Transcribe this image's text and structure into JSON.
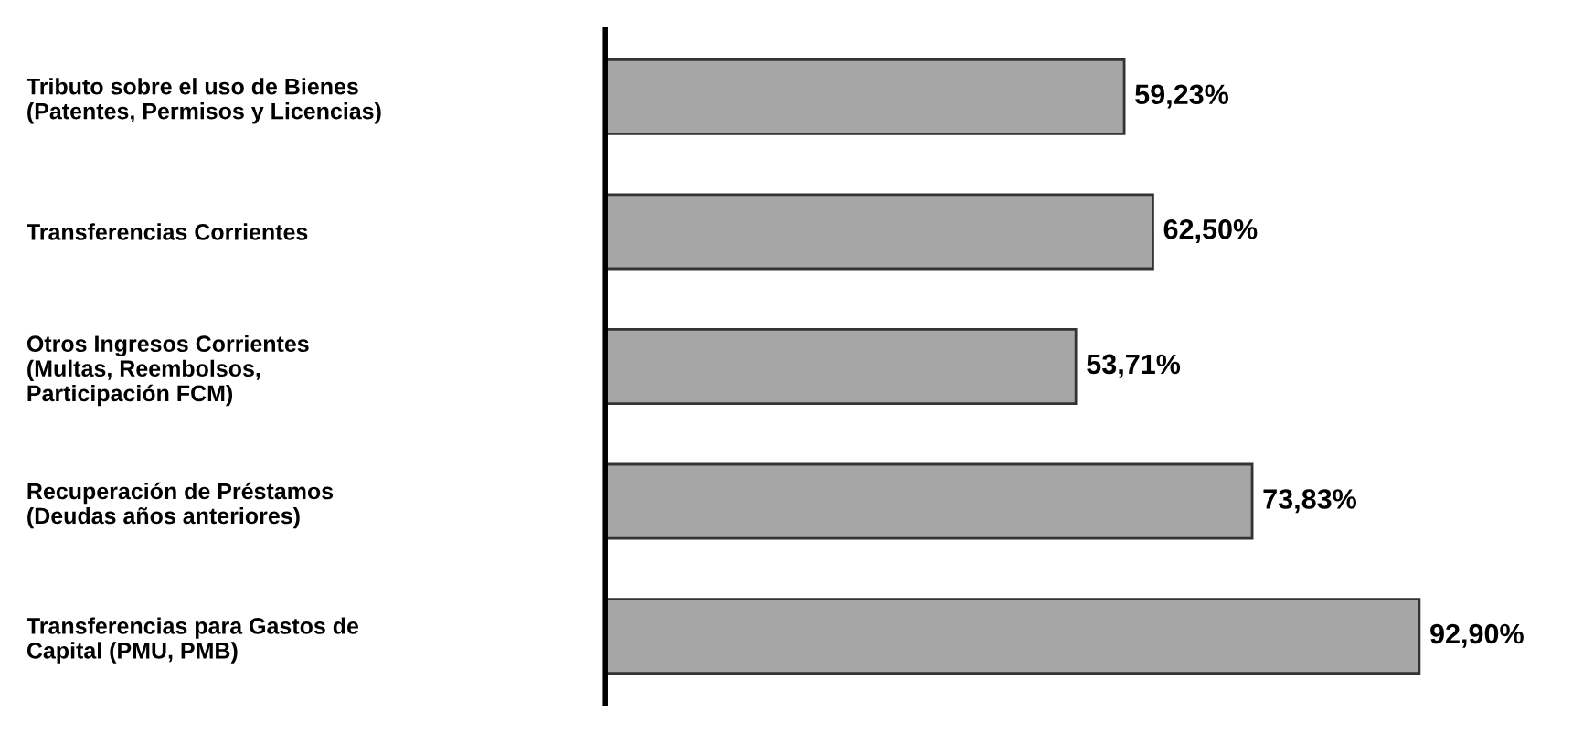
{
  "chart_data": {
    "type": "bar",
    "orientation": "horizontal",
    "categories": [
      "Tributo sobre el uso de Bienes\n(Patentes, Permisos y Licencias)",
      "Transferencias Corrientes",
      "Otros Ingresos Corrientes\n(Multas, Reembolsos,\nParticipación FCM)",
      "Recuperación de Préstamos\n(Deudas años anteriores)",
      "Transferencias para Gastos de\nCapital (PMU, PMB)"
    ],
    "values": [
      59.23,
      62.5,
      53.71,
      73.83,
      92.9
    ],
    "value_labels": [
      "59,23%",
      "62,50%",
      "53,71%",
      "73,83%",
      "92,90%"
    ],
    "color": "#a6a6a6",
    "grid": false,
    "legend": false
  }
}
